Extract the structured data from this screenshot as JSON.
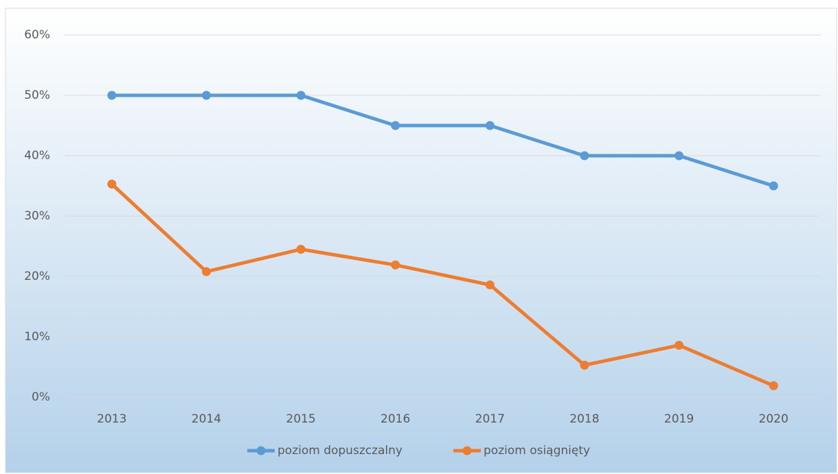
{
  "chart_data": {
    "type": "line",
    "categories": [
      "2013",
      "2014",
      "2015",
      "2016",
      "2017",
      "2018",
      "2019",
      "2020"
    ],
    "series": [
      {
        "name": "poziom dopuszczalny",
        "color": "#5b9bd5",
        "values": [
          50,
          50,
          50,
          45,
          45,
          40,
          40,
          35
        ]
      },
      {
        "name": "poziom osiągnięty",
        "color": "#ed7d31",
        "values": [
          35.3,
          20.8,
          24.5,
          21.9,
          18.6,
          5.3,
          8.6,
          1.9
        ]
      }
    ],
    "ylim": [
      0,
      60
    ],
    "yticks": [
      {
        "value": 0,
        "label": "0%"
      },
      {
        "value": 10,
        "label": "10%"
      },
      {
        "value": 20,
        "label": "20%"
      },
      {
        "value": 30,
        "label": "30%"
      },
      {
        "value": 40,
        "label": "40%"
      },
      {
        "value": 50,
        "label": "50%"
      },
      {
        "value": 60,
        "label": "60%"
      }
    ],
    "grid": true,
    "legend": "bottom"
  }
}
